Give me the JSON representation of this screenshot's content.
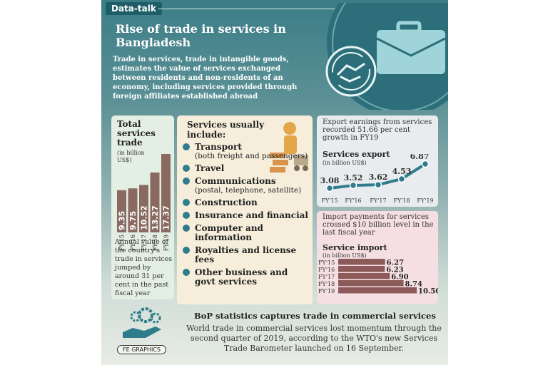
{
  "tag": "Data-talk",
  "title": "Rise of trade in services in Bangladesh",
  "intro": "Trade in services, trade in intangible goods, estimates the value of services exchanged between residents and non-residents of an economy, including services provided through foreign affiliates established abroad",
  "total": {
    "title": "Total services trade",
    "unit": "(in billion US$)",
    "note": "Annual value of the country's trade in services jumped by around 31 per cent in the past fiscal year"
  },
  "list": {
    "title": "Services usually include:",
    "items": [
      {
        "name": "Transport",
        "sub": "(both freight and passengers)"
      },
      {
        "name": "Travel",
        "sub": ""
      },
      {
        "name": "Communications",
        "sub": "(postal, telephone, satellite)"
      },
      {
        "name": "Construction",
        "sub": ""
      },
      {
        "name": "Insurance and financial",
        "sub": ""
      },
      {
        "name": "Computer and information",
        "sub": ""
      },
      {
        "name": "Royalties and license fees",
        "sub": ""
      },
      {
        "name": "Other business and govt services",
        "sub": ""
      }
    ]
  },
  "export": {
    "note": "Export earnings from services recorded 51.66 per cent growth in FY19",
    "title": "Services export",
    "unit": "(in billion US$)"
  },
  "import": {
    "note": "Import payments for services crossed $10 billion level in the last fiscal year",
    "title": "Service import",
    "unit": "(in billion US$)"
  },
  "bop": {
    "title": "BoP statistics captures trade in commercial services",
    "body": "World trade in commercial services lost momentum through the second quarter of 2019, according to the WTO's new Services Trade Barometer launched on 16 September."
  },
  "logo": "FE GRAPHICS",
  "colors": {
    "accent": "#2f7d8c",
    "bar_total": "#8a6a60",
    "bar_import": "#8c5a58"
  },
  "chart_data": [
    {
      "type": "bar",
      "title": "Total services trade",
      "ylabel": "(in billion US$)",
      "categories": [
        "FY'15",
        "FY'16",
        "FY'17",
        "FY'18",
        "FY'19"
      ],
      "values": [
        9.35,
        9.75,
        10.52,
        13.27,
        17.37
      ],
      "labels": [
        "9.35",
        "9.75",
        "10.52",
        "13.27",
        "17.37"
      ]
    },
    {
      "type": "line",
      "title": "Services export",
      "ylabel": "(in billion US$)",
      "categories": [
        "FY'15",
        "FY'16",
        "FY'17",
        "FY'18",
        "FY'19"
      ],
      "values": [
        3.08,
        3.52,
        3.62,
        4.53,
        6.87
      ],
      "labels": [
        "3.08",
        "3.52",
        "3.62",
        "4.53",
        "6.87"
      ]
    },
    {
      "type": "bar",
      "title": "Service import",
      "ylabel": "(in billion US$)",
      "categories": [
        "FY'15",
        "FY'16",
        "FY'17",
        "FY'18",
        "FY'19"
      ],
      "values": [
        6.27,
        6.23,
        6.9,
        8.74,
        10.5
      ],
      "labels": [
        "6.27",
        "6.23",
        "6.90",
        "8.74",
        "10.50"
      ]
    }
  ]
}
